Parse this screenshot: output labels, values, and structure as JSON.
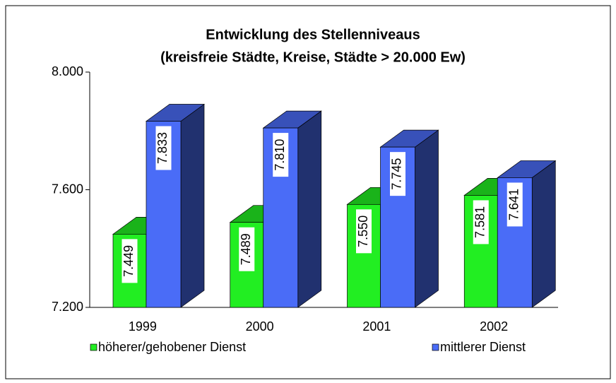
{
  "chart_data": {
    "type": "bar3d",
    "title": "Entwicklung des Stellenniveaus",
    "subtitle": "(kreisfreie Städte, Kreise, Städte > 20.000 Ew)",
    "categories": [
      "1999",
      "2000",
      "2001",
      "2002"
    ],
    "series": [
      {
        "name": "höherer/gehobener Dienst",
        "color": "#22ee22",
        "values": [
          7449,
          7489,
          7550,
          7581
        ],
        "value_labels": [
          "7.449",
          "7.489",
          "7.550",
          "7.581"
        ]
      },
      {
        "name": "mittlerer Dienst",
        "color": "#4a6cf7",
        "values": [
          7833,
          7810,
          7745,
          7641
        ],
        "value_labels": [
          "7.833",
          "7.810",
          "7.745",
          "7.641"
        ]
      }
    ],
    "ylim": [
      7200,
      8000
    ],
    "yticks": [
      {
        "value": 7200,
        "label": "7.200"
      },
      {
        "value": 7600,
        "label": "7.600"
      },
      {
        "value": 8000,
        "label": "8.000"
      }
    ],
    "legend": "bottom"
  }
}
